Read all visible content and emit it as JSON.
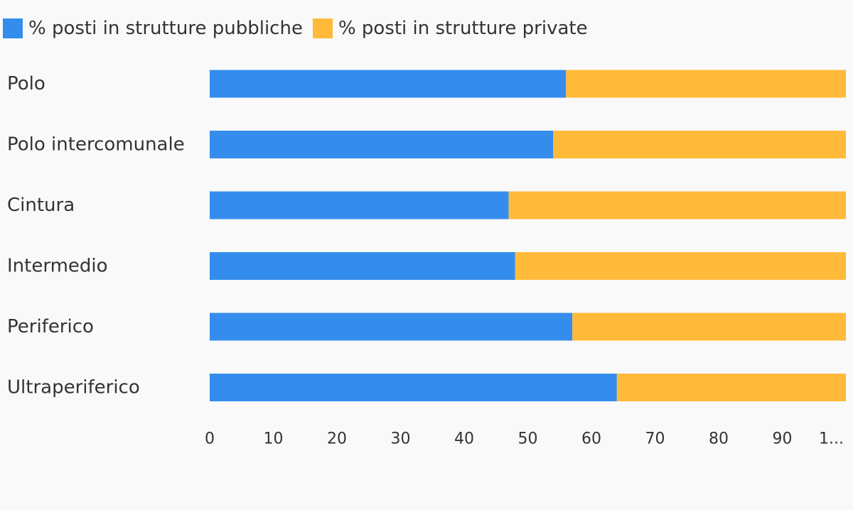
{
  "legend": {
    "public_label": "% posti in strutture pubbliche",
    "private_label": "% posti in strutture private"
  },
  "chart_data": {
    "type": "bar",
    "orientation": "horizontal",
    "stacked": true,
    "categories": [
      "Polo",
      "Polo intercomunale",
      "Cintura",
      "Intermedio",
      "Periferico",
      "Ultraperiferico"
    ],
    "series": [
      {
        "name": "% posti in strutture pubbliche",
        "color": "#348ded",
        "values": [
          56,
          54,
          47,
          48,
          57,
          64
        ]
      },
      {
        "name": "% posti in strutture private",
        "color": "#ffba39",
        "values": [
          44,
          46,
          53,
          52,
          43,
          36
        ]
      }
    ],
    "xlim": [
      0,
      100
    ],
    "x_ticks": [
      "0",
      "10",
      "20",
      "30",
      "40",
      "50",
      "60",
      "70",
      "80",
      "90",
      "1..."
    ],
    "grid": false,
    "legend_position": "top-left"
  }
}
